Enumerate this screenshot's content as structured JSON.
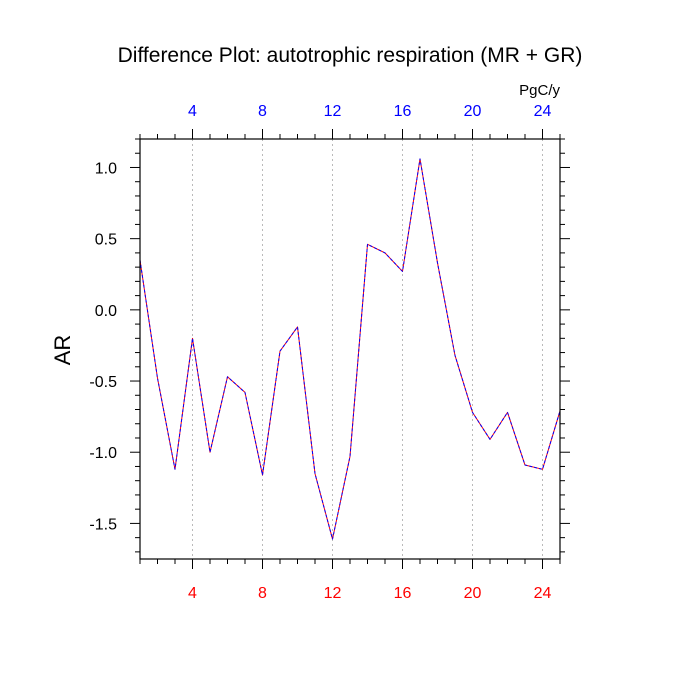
{
  "chart_data": {
    "type": "line",
    "title": "Difference Plot: autotrophic respiration (MR + GR)",
    "ylabel": "AR",
    "xlabel": "",
    "units": "PgC/y",
    "xlim": [
      1,
      25
    ],
    "ylim": [
      -1.75,
      1.2
    ],
    "grid": "vertical-dotted",
    "x_ticks": [
      4,
      8,
      12,
      16,
      20,
      24
    ],
    "y_ticks": [
      -1.5,
      -1.0,
      -0.5,
      0.0,
      0.5,
      1.0
    ],
    "y_tick_labels": [
      "-1.5",
      "-1.0",
      "-0.5",
      "0.0",
      "0.5",
      "1.0"
    ],
    "x": [
      1,
      2,
      3,
      4,
      5,
      6,
      7,
      8,
      9,
      10,
      11,
      12,
      13,
      14,
      15,
      16,
      17,
      18,
      19,
      20,
      21,
      22,
      23,
      24,
      25
    ],
    "series": [
      {
        "values": [
          0.35,
          -0.48,
          -1.12,
          -0.2,
          -1.0,
          -0.47,
          -0.58,
          -1.16,
          -0.29,
          -0.12,
          -1.15,
          -1.61,
          -1.03,
          0.46,
          0.4,
          0.27,
          1.06,
          0.33,
          -0.32,
          -0.72,
          -0.91,
          -0.72,
          -1.09,
          -1.12,
          -0.71
        ],
        "colors": [
          "#0000ff",
          "#ff0000"
        ]
      }
    ],
    "colors": {
      "top_axis_labels": "#0000ff",
      "bottom_axis_labels": "#ff0000",
      "axes": "#000000",
      "grid": "#aaaaaa"
    }
  }
}
